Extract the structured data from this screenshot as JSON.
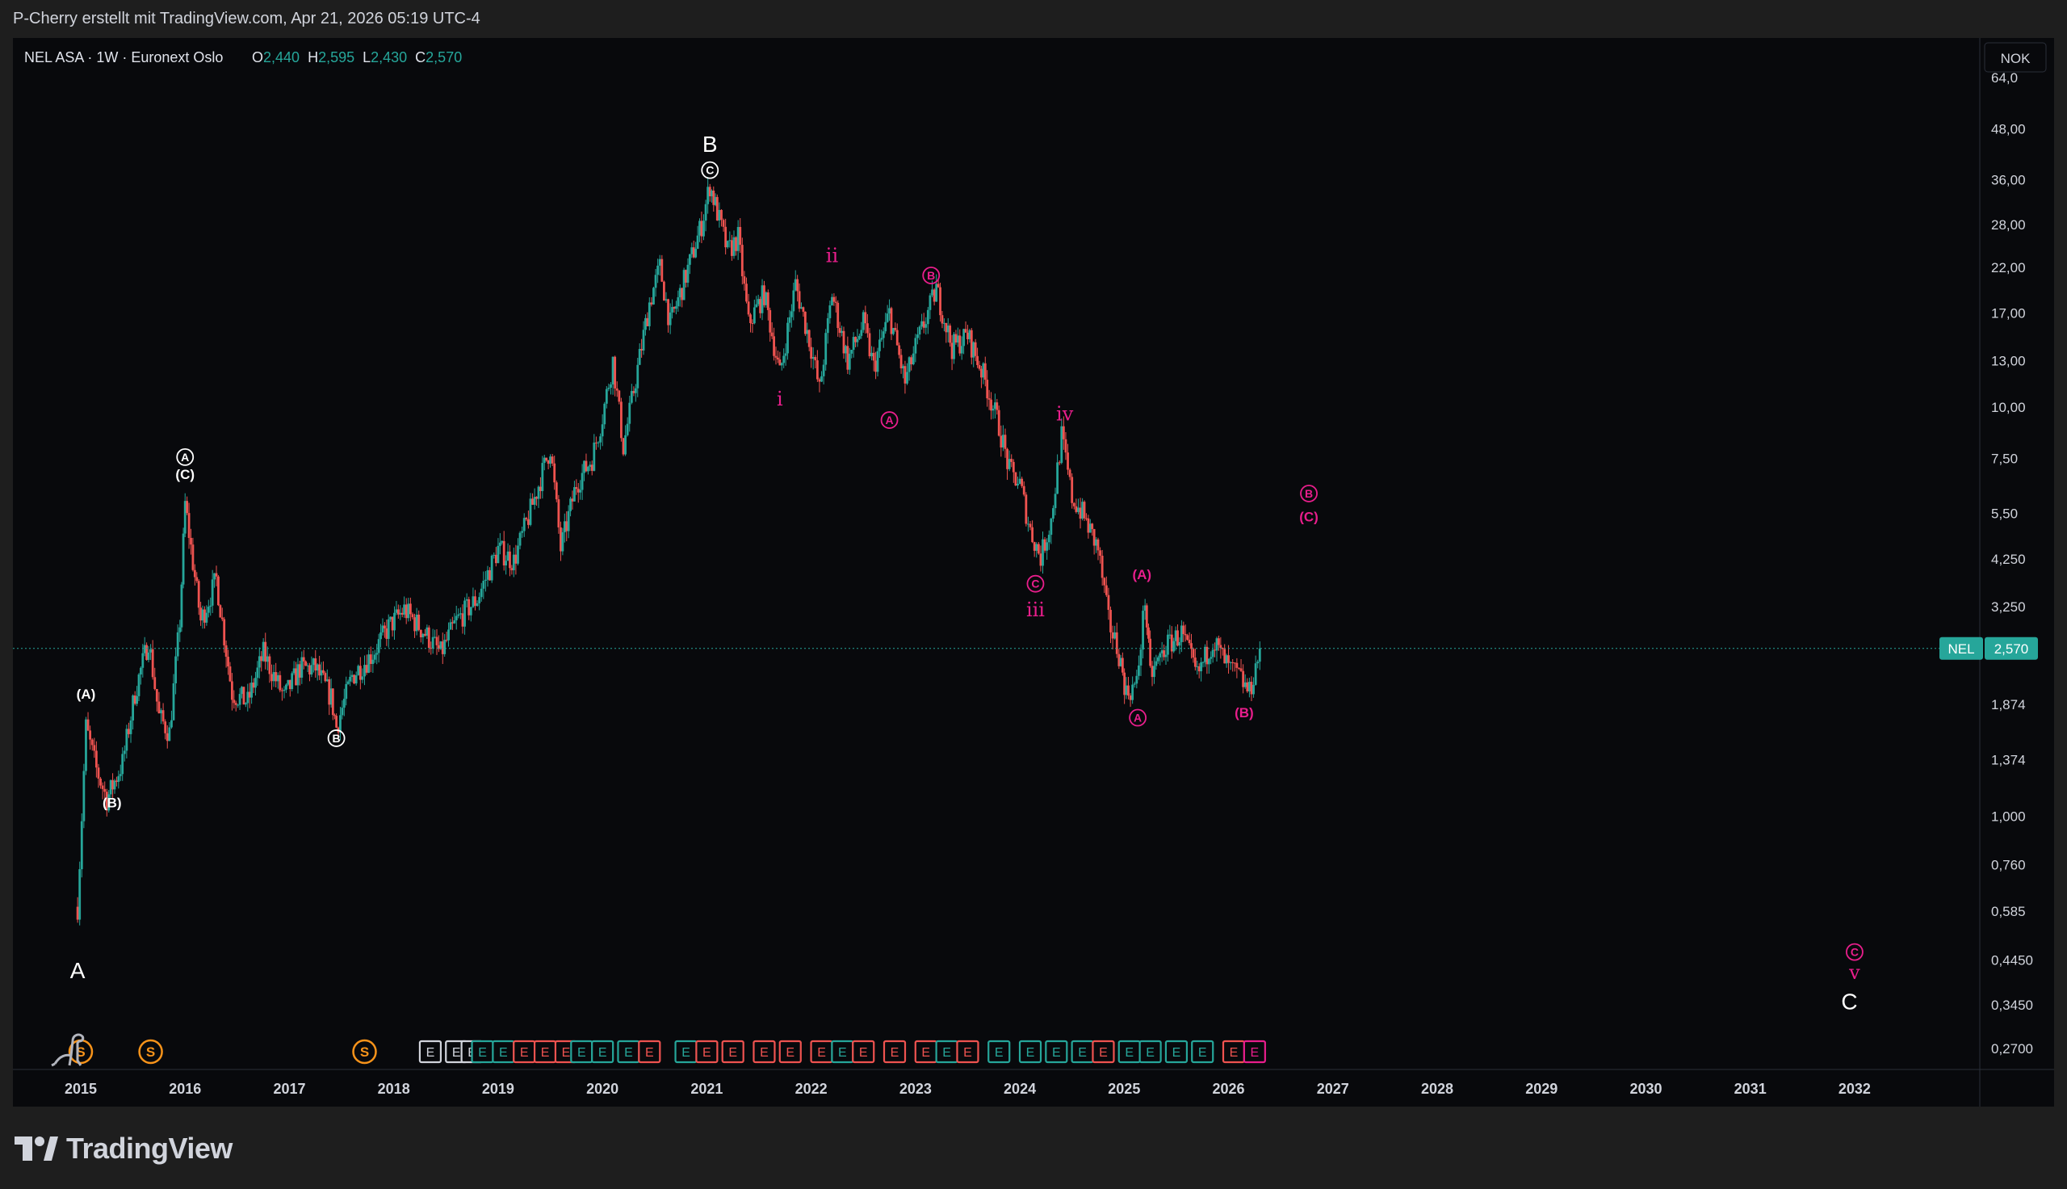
{
  "header": {
    "text": "P-Cherry erstellt mit TradingView.com, Apr 21, 2026 05:19 UTC-4"
  },
  "legend": {
    "symbol": "NEL ASA · 1W · Euronext Oslo",
    "o_label": "O",
    "o_value": "2,440",
    "h_label": "H",
    "h_value": "2,595",
    "l_label": "L",
    "l_value": "2,430",
    "c_label": "C",
    "c_value": "2,570"
  },
  "currency": "NOK",
  "price_tag": {
    "symbol": "NEL",
    "value": "2,570"
  },
  "footer": {
    "brand": "TradingView"
  },
  "colors": {
    "up": "#26a69a",
    "down": "#ef5350",
    "wave_white": "#ffffff",
    "wave_magenta": "#e91e8c",
    "dividend": "#f7931a",
    "grid_bg": "#08090c"
  },
  "chart_data": {
    "type": "candlestick",
    "title": "NEL ASA · 1W · Euronext Oslo",
    "y_scale": "log",
    "ylim": [
      0.24,
      80
    ],
    "xlim": [
      2014.35,
      2033.2
    ],
    "x_ticks": [
      "2015",
      "2016",
      "2017",
      "2018",
      "2019",
      "2020",
      "2021",
      "2022",
      "2023",
      "2024",
      "2025",
      "2026",
      "2027",
      "2028",
      "2029",
      "2030",
      "2031",
      "2032"
    ],
    "y_ticks": [
      "64,0",
      "48,00",
      "36,00",
      "28,00",
      "22,00",
      "17,00",
      "13,00",
      "10,00",
      "7,50",
      "5,50",
      "4,250",
      "3,250",
      "1,874",
      "1,374",
      "1,000",
      "0,760",
      "0,585",
      "0,4450",
      "0,3450",
      "0,2700"
    ],
    "y_tick_values": [
      64,
      48,
      36,
      28,
      22,
      17,
      13,
      10,
      7.5,
      5.5,
      4.25,
      3.25,
      1.874,
      1.374,
      1.0,
      0.76,
      0.585,
      0.445,
      0.345,
      0.27
    ],
    "last_price": 2.57,
    "price_path": [
      [
        2014.97,
        0.6
      ],
      [
        2015.05,
        1.65
      ],
      [
        2015.15,
        1.3
      ],
      [
        2015.25,
        1.1
      ],
      [
        2015.4,
        1.35
      ],
      [
        2015.52,
        2.0
      ],
      [
        2015.65,
        2.7
      ],
      [
        2015.75,
        1.75
      ],
      [
        2015.85,
        1.6
      ],
      [
        2015.95,
        3.0
      ],
      [
        2016.0,
        5.8
      ],
      [
        2016.15,
        3.0
      ],
      [
        2016.3,
        3.8
      ],
      [
        2016.45,
        2.0
      ],
      [
        2016.6,
        1.9
      ],
      [
        2016.75,
        2.5
      ],
      [
        2016.95,
        1.95
      ],
      [
        2017.1,
        2.3
      ],
      [
        2017.25,
        2.3
      ],
      [
        2017.4,
        1.95
      ],
      [
        2017.45,
        1.65
      ],
      [
        2017.6,
        2.2
      ],
      [
        2017.8,
        2.5
      ],
      [
        2017.95,
        2.9
      ],
      [
        2018.1,
        3.2
      ],
      [
        2018.3,
        2.8
      ],
      [
        2018.45,
        2.5
      ],
      [
        2018.6,
        3.0
      ],
      [
        2018.8,
        3.4
      ],
      [
        2019.0,
        4.5
      ],
      [
        2019.15,
        4.2
      ],
      [
        2019.35,
        6.0
      ],
      [
        2019.5,
        8.0
      ],
      [
        2019.6,
        4.5
      ],
      [
        2019.75,
        6.5
      ],
      [
        2019.9,
        7.5
      ],
      [
        2020.0,
        9.5
      ],
      [
        2020.1,
        13.0
      ],
      [
        2020.2,
        8.0
      ],
      [
        2020.3,
        11.0
      ],
      [
        2020.45,
        18.0
      ],
      [
        2020.55,
        22.0
      ],
      [
        2020.65,
        16.0
      ],
      [
        2020.8,
        21.0
      ],
      [
        2020.95,
        28.0
      ],
      [
        2021.03,
        35.0
      ],
      [
        2021.1,
        30.0
      ],
      [
        2021.2,
        24.0
      ],
      [
        2021.3,
        26.0
      ],
      [
        2021.4,
        16.0
      ],
      [
        2021.55,
        19.0
      ],
      [
        2021.7,
        12.0
      ],
      [
        2021.85,
        20.0
      ],
      [
        2022.0,
        14.0
      ],
      [
        2022.08,
        11.0
      ],
      [
        2022.2,
        19.0
      ],
      [
        2022.35,
        13.0
      ],
      [
        2022.5,
        16.0
      ],
      [
        2022.6,
        12.5
      ],
      [
        2022.75,
        17.0
      ],
      [
        2022.9,
        11.5
      ],
      [
        2023.0,
        14.0
      ],
      [
        2023.1,
        16.5
      ],
      [
        2023.2,
        19.5
      ],
      [
        2023.35,
        14.0
      ],
      [
        2023.5,
        15.0
      ],
      [
        2023.65,
        12.0
      ],
      [
        2023.8,
        9.0
      ],
      [
        2023.9,
        7.0
      ],
      [
        2024.0,
        6.5
      ],
      [
        2024.1,
        5.0
      ],
      [
        2024.2,
        4.3
      ],
      [
        2024.3,
        5.3
      ],
      [
        2024.4,
        8.5
      ],
      [
        2024.5,
        6.0
      ],
      [
        2024.6,
        5.5
      ],
      [
        2024.75,
        4.5
      ],
      [
        2024.85,
        3.0
      ],
      [
        2024.95,
        2.5
      ],
      [
        2025.02,
        2.0
      ],
      [
        2025.12,
        2.1
      ],
      [
        2025.2,
        3.4
      ],
      [
        2025.25,
        2.2
      ],
      [
        2025.4,
        2.6
      ],
      [
        2025.55,
        2.8
      ],
      [
        2025.7,
        2.2
      ],
      [
        2025.85,
        2.7
      ],
      [
        2026.0,
        2.3
      ],
      [
        2026.1,
        2.2
      ],
      [
        2026.2,
        2.0
      ],
      [
        2026.3,
        2.57
      ]
    ],
    "waves": [
      {
        "label": "A",
        "x": 2014.97,
        "y": 0.42,
        "color": "white",
        "style": "big"
      },
      {
        "label": "(A)",
        "x": 2015.05,
        "y": 1.99,
        "color": "white",
        "style": "paren"
      },
      {
        "label": "(B)",
        "x": 2015.3,
        "y": 1.08,
        "color": "white",
        "style": "paren"
      },
      {
        "label": "A",
        "x": 2016.0,
        "y": 7.55,
        "color": "white",
        "style": "circle"
      },
      {
        "label": "(C)",
        "x": 2016.0,
        "y": 6.85,
        "color": "white",
        "style": "paren"
      },
      {
        "label": "B",
        "x": 2017.45,
        "y": 1.55,
        "color": "white",
        "style": "circle"
      },
      {
        "label": "B",
        "x": 2021.03,
        "y": 44.0,
        "color": "white",
        "style": "big"
      },
      {
        "label": "C",
        "x": 2021.03,
        "y": 38.0,
        "color": "white",
        "style": "circle"
      },
      {
        "label": "i",
        "x": 2021.7,
        "y": 10.5,
        "color": "magenta",
        "style": "roman"
      },
      {
        "label": "ii",
        "x": 2022.2,
        "y": 23.5,
        "color": "magenta",
        "style": "roman"
      },
      {
        "label": "A",
        "x": 2022.75,
        "y": 9.3,
        "color": "magenta",
        "style": "circle"
      },
      {
        "label": "B",
        "x": 2023.15,
        "y": 21.0,
        "color": "magenta",
        "style": "circle"
      },
      {
        "label": "iv",
        "x": 2024.43,
        "y": 9.65,
        "color": "magenta",
        "style": "roman"
      },
      {
        "label": "C",
        "x": 2024.15,
        "y": 3.7,
        "color": "magenta",
        "style": "circle"
      },
      {
        "label": "iii",
        "x": 2024.15,
        "y": 3.2,
        "color": "magenta",
        "style": "roman"
      },
      {
        "label": "(A)",
        "x": 2025.17,
        "y": 3.9,
        "color": "magenta",
        "style": "paren"
      },
      {
        "label": "A",
        "x": 2025.13,
        "y": 1.74,
        "color": "magenta",
        "style": "circle"
      },
      {
        "label": "(B)",
        "x": 2026.15,
        "y": 1.79,
        "color": "magenta",
        "style": "paren"
      },
      {
        "label": "B",
        "x": 2026.77,
        "y": 6.15,
        "color": "magenta",
        "style": "circle"
      },
      {
        "label": "(C)",
        "x": 2026.77,
        "y": 5.4,
        "color": "magenta",
        "style": "paren"
      },
      {
        "label": "C",
        "x": 2032.0,
        "y": 0.465,
        "color": "magenta",
        "style": "circle"
      },
      {
        "label": "v",
        "x": 2032.0,
        "y": 0.415,
        "color": "magenta",
        "style": "roman"
      },
      {
        "label": "C",
        "x": 2031.95,
        "y": 0.352,
        "color": "white",
        "style": "big"
      }
    ],
    "events": [
      {
        "label": "S",
        "x": 2015.0,
        "kind": "dividend"
      },
      {
        "label": "S",
        "x": 2015.67,
        "kind": "dividend"
      },
      {
        "label": "S",
        "x": 2017.72,
        "kind": "dividend"
      },
      {
        "label": "E",
        "x": 2018.35,
        "kind": "neutral"
      },
      {
        "label": "E",
        "x": 2018.6,
        "kind": "neutral"
      },
      {
        "label": "E",
        "x": 2018.75,
        "kind": "neutral"
      },
      {
        "label": "E",
        "x": 2018.85,
        "kind": "up"
      },
      {
        "label": "E",
        "x": 2019.05,
        "kind": "up"
      },
      {
        "label": "E",
        "x": 2019.25,
        "kind": "down"
      },
      {
        "label": "E",
        "x": 2019.45,
        "kind": "down"
      },
      {
        "label": "E",
        "x": 2019.65,
        "kind": "down"
      },
      {
        "label": "E",
        "x": 2019.8,
        "kind": "up"
      },
      {
        "label": "E",
        "x": 2020.0,
        "kind": "up"
      },
      {
        "label": "E",
        "x": 2020.25,
        "kind": "up"
      },
      {
        "label": "E",
        "x": 2020.45,
        "kind": "down"
      },
      {
        "label": "E",
        "x": 2020.8,
        "kind": "up"
      },
      {
        "label": "E",
        "x": 2021.0,
        "kind": "down"
      },
      {
        "label": "E",
        "x": 2021.25,
        "kind": "down"
      },
      {
        "label": "E",
        "x": 2021.55,
        "kind": "down"
      },
      {
        "label": "E",
        "x": 2021.8,
        "kind": "down"
      },
      {
        "label": "E",
        "x": 2022.1,
        "kind": "down"
      },
      {
        "label": "E",
        "x": 2022.3,
        "kind": "up"
      },
      {
        "label": "E",
        "x": 2022.5,
        "kind": "down"
      },
      {
        "label": "E",
        "x": 2022.8,
        "kind": "down"
      },
      {
        "label": "E",
        "x": 2023.1,
        "kind": "down"
      },
      {
        "label": "E",
        "x": 2023.3,
        "kind": "up"
      },
      {
        "label": "E",
        "x": 2023.5,
        "kind": "down"
      },
      {
        "label": "E",
        "x": 2023.8,
        "kind": "up"
      },
      {
        "label": "E",
        "x": 2024.1,
        "kind": "up"
      },
      {
        "label": "E",
        "x": 2024.35,
        "kind": "up"
      },
      {
        "label": "E",
        "x": 2024.6,
        "kind": "up"
      },
      {
        "label": "E",
        "x": 2024.8,
        "kind": "down"
      },
      {
        "label": "E",
        "x": 2025.05,
        "kind": "up"
      },
      {
        "label": "E",
        "x": 2025.25,
        "kind": "up"
      },
      {
        "label": "E",
        "x": 2025.5,
        "kind": "up"
      },
      {
        "label": "E",
        "x": 2025.75,
        "kind": "up"
      },
      {
        "label": "E",
        "x": 2026.05,
        "kind": "down"
      },
      {
        "label": "E",
        "x": 2026.25,
        "kind": "magenta"
      }
    ]
  }
}
